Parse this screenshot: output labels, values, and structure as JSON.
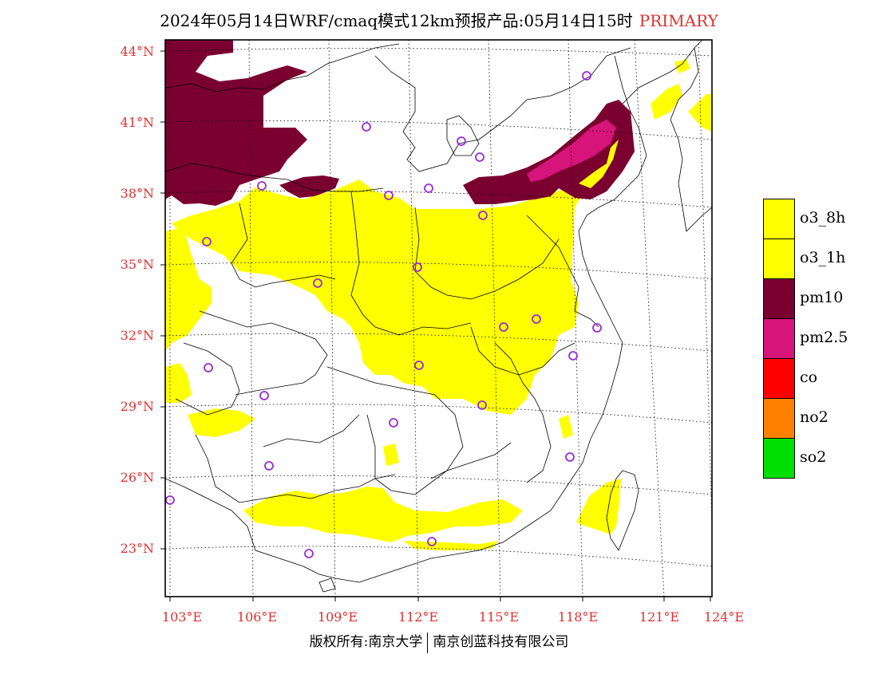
{
  "title": "2024年05月14日WRF/cmaq模式12km预报产品:05月14日15时",
  "title_tag": "PRIMARY",
  "lat_labels": [
    "44°N",
    "41°N",
    "38°N",
    "35°N",
    "32°N",
    "29°N",
    "26°N",
    "23°N"
  ],
  "lon_labels": [
    "103°E",
    "106°E",
    "109°E",
    "112°E",
    "115°E",
    "118°E",
    "121°E",
    "124°E"
  ],
  "legend": [
    {
      "label": "o3_8h",
      "color": "#ffff00"
    },
    {
      "label": "o3_1h",
      "color": "#ffff00"
    },
    {
      "label": "pm10",
      "color": "#7a0030"
    },
    {
      "label": "pm2.5",
      "color": "#d6147a"
    },
    {
      "label": "co",
      "color": "#ff0000"
    },
    {
      "label": "no2",
      "color": "#ff8000"
    },
    {
      "label": "so2",
      "color": "#00e000"
    }
  ],
  "footer_left": "版权所有:南京大学",
  "footer_right": "南京创蓝科技有限公司",
  "colors": {
    "axis_label": "#e03030",
    "station_marker": "#9a2bd6"
  }
}
